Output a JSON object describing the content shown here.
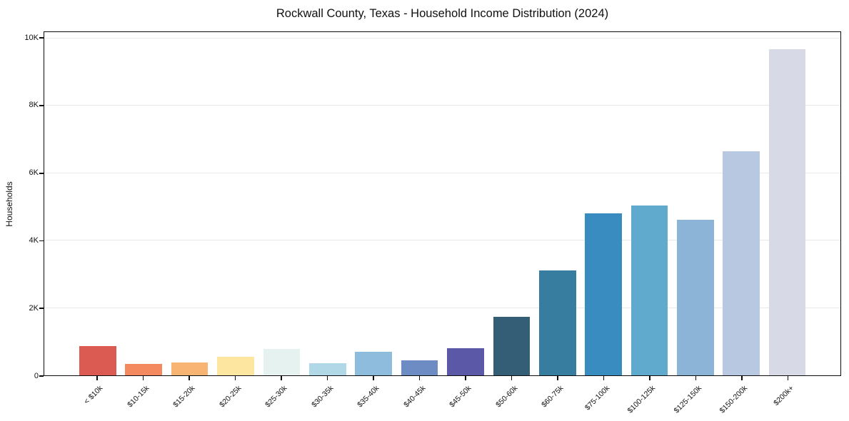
{
  "title": "Rockwall County, Texas - Household Income Distribution (2024)",
  "chart_data": {
    "type": "bar",
    "title": "Rockwall County, Texas - Household Income Distribution (2024)",
    "xlabel": "",
    "ylabel": "Households",
    "categories": [
      "< $10k",
      "$10-15k",
      "$15-20k",
      "$20-25k",
      "$25-30k",
      "$30-35k",
      "$35-40k",
      "$40-45k",
      "$45-50k",
      "$50-60k",
      "$60-75k",
      "$75-100k",
      "$100-125k",
      "$125-150k",
      "$150-200k",
      "$200k+"
    ],
    "values": [
      860,
      330,
      390,
      560,
      790,
      360,
      700,
      450,
      810,
      1740,
      3110,
      4800,
      5050,
      4620,
      6650,
      9690
    ],
    "bar_colors": [
      "#db5a52",
      "#f48960",
      "#f7b472",
      "#fce6a0",
      "#e6f2f0",
      "#b0d8e6",
      "#8ebcdc",
      "#6c8cc3",
      "#5c58a8",
      "#345e75",
      "#377da0",
      "#388cc0",
      "#5faacd",
      "#8cb4d7",
      "#b9c8e1",
      "#d7dae6"
    ],
    "ylim": [
      0,
      10190
    ],
    "yticks": [
      {
        "value": 0,
        "label": "0"
      },
      {
        "value": 2000,
        "label": "2K"
      },
      {
        "value": 4000,
        "label": "4K"
      },
      {
        "value": 6000,
        "label": "6K"
      },
      {
        "value": 8000,
        "label": "8K"
      },
      {
        "value": 10000,
        "label": "10K"
      }
    ],
    "grid": "horizontal gridlines at y ticks",
    "legend": "none",
    "frame": "full box (all four spines)"
  }
}
